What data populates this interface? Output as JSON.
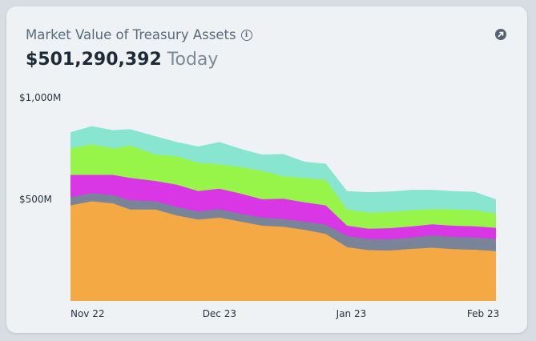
{
  "header": {
    "title": "Market Value of Treasury Assets",
    "value": "$501,290,392",
    "value_suffix": "Today",
    "info_icon": "info-icon",
    "expand_icon": "expand-arrow-icon"
  },
  "chart_data": {
    "type": "area",
    "stacked": true,
    "title": "Market Value of Treasury Assets",
    "y_unit": "M",
    "ylim": [
      0,
      1000
    ],
    "y_ticks": [
      {
        "value": 1000,
        "label": "$1,000M"
      },
      {
        "value": 500,
        "label": "$500M"
      }
    ],
    "x_ticks": [
      {
        "x": 4,
        "label": "Nov 22"
      },
      {
        "x": 35,
        "label": "Dec 23"
      },
      {
        "x": 66,
        "label": "Jan 23"
      },
      {
        "x": 97,
        "label": "Feb 23"
      }
    ],
    "x": [
      0,
      5,
      10,
      14,
      20,
      25,
      30,
      35,
      40,
      45,
      50,
      55,
      60,
      65,
      70,
      75,
      80,
      85,
      90,
      95,
      100
    ],
    "series": [
      {
        "color": "#f5a944",
        "values": [
          470,
          490,
          480,
          450,
          450,
          420,
          400,
          410,
          390,
          370,
          365,
          350,
          330,
          265,
          250,
          248,
          256,
          262,
          255,
          252,
          245
        ]
      },
      {
        "color": "#7a8499",
        "values": [
          40,
          40,
          40,
          45,
          40,
          42,
          40,
          42,
          38,
          40,
          38,
          40,
          45,
          55,
          55,
          55,
          55,
          60,
          60,
          60,
          60
        ]
      },
      {
        "color": "#d937e5",
        "values": [
          110,
          90,
          100,
          110,
          100,
          110,
          100,
          100,
          100,
          90,
          100,
          95,
          95,
          50,
          50,
          55,
          55,
          55,
          55,
          55,
          55
        ]
      },
      {
        "color": "#97f54a",
        "values": [
          130,
          150,
          130,
          160,
          130,
          140,
          140,
          120,
          130,
          140,
          110,
          120,
          125,
          80,
          80,
          80,
          80,
          75,
          80,
          80,
          70
        ]
      },
      {
        "color": "#88e5d0",
        "values": [
          80,
          90,
          90,
          80,
          90,
          70,
          80,
          110,
          90,
          80,
          110,
          80,
          80,
          90,
          100,
          100,
          100,
          95,
          90,
          90,
          70
        ]
      }
    ]
  }
}
